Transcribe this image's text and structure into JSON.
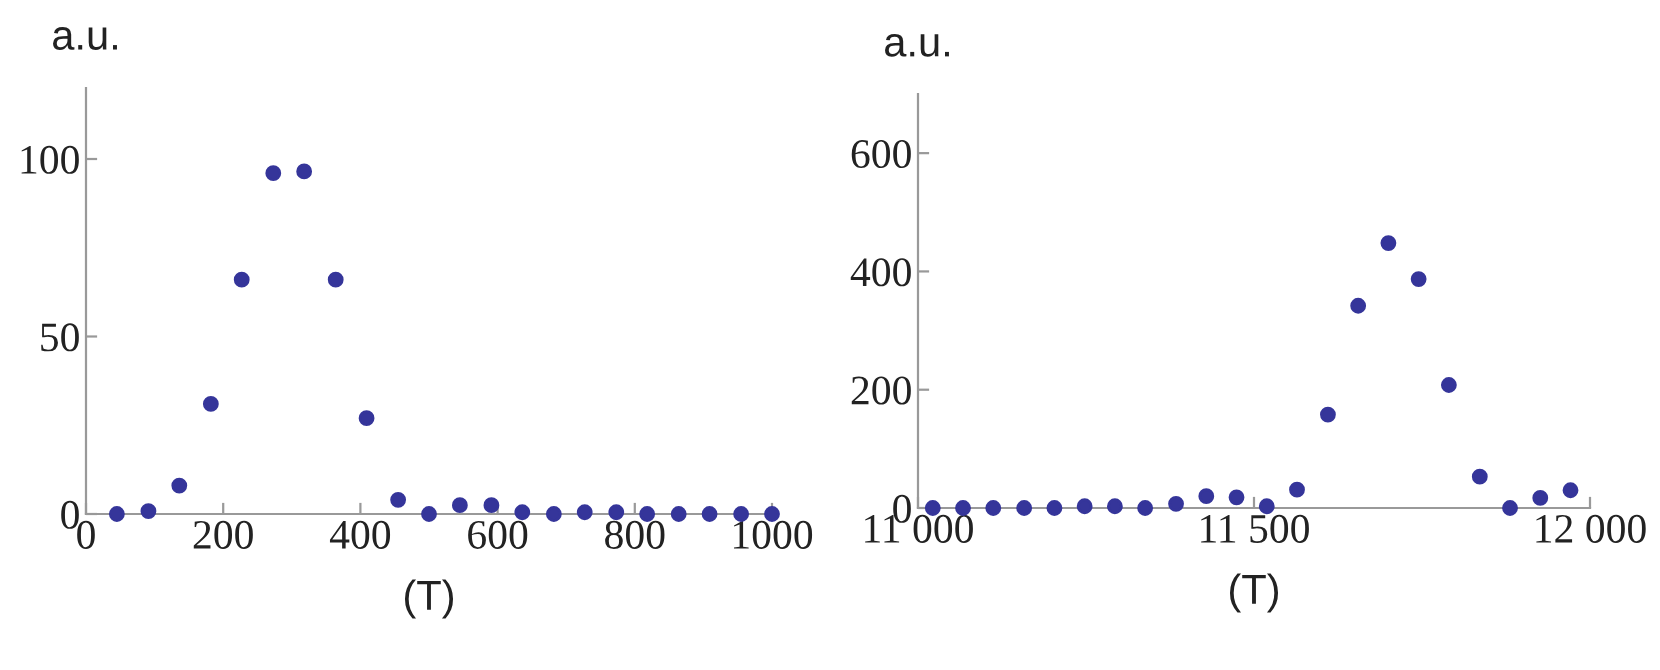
{
  "chart_data": [
    {
      "type": "scatter",
      "xlabel": "(T)",
      "ylabel": "a.u.",
      "marker": "circle",
      "grid": false,
      "legend": false,
      "x": [
        45,
        91,
        136,
        182,
        227,
        273,
        318,
        364,
        409,
        455,
        500,
        545,
        591,
        636,
        682,
        727,
        773,
        818,
        864,
        909,
        955,
        1000
      ],
      "series": [
        {
          "color": "#35359a",
          "values": [
            0,
            0.8,
            8,
            31,
            66,
            96,
            96.5,
            66,
            27,
            4,
            0,
            2.5,
            2.5,
            0.5,
            0,
            0.5,
            0.5,
            0,
            0,
            0,
            0,
            0
          ]
        }
      ],
      "xlim": [
        0,
        1000
      ],
      "xticks": [
        0,
        200,
        400,
        600,
        800,
        1000
      ],
      "ylim": [
        0,
        120
      ],
      "yticks": [
        0,
        50,
        100
      ]
    },
    {
      "type": "scatter",
      "xlabel": "(T)",
      "ylabel": "a.u.",
      "marker": "circle",
      "grid": false,
      "legend": false,
      "x": [
        11022,
        11067,
        11112,
        11158,
        11203,
        11248,
        11293,
        11338,
        11384,
        11429,
        11474,
        11519,
        11564,
        11610,
        11655,
        11700,
        11745,
        11790,
        11836,
        11881,
        11926,
        11971
      ],
      "series": [
        {
          "color": "#35359a",
          "values": [
            0,
            0,
            0,
            0,
            0,
            3,
            3,
            0,
            7,
            20,
            18,
            3,
            31,
            158,
            342,
            448,
            387,
            208,
            53,
            0,
            17,
            30
          ]
        }
      ],
      "xlim": [
        11000,
        12000
      ],
      "xticks": [
        {
          "value": 11000,
          "label": "11 000"
        },
        {
          "value": 11500,
          "label": "11 500"
        },
        {
          "value": 12000,
          "label": "12 000"
        }
      ],
      "ylim": [
        0,
        700
      ],
      "yticks": [
        0,
        200,
        400,
        600
      ]
    }
  ]
}
